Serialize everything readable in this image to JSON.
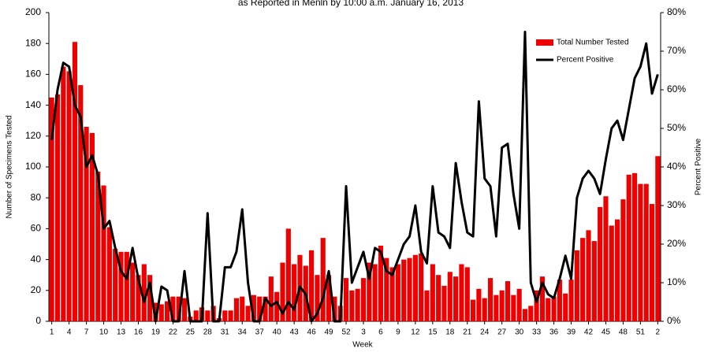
{
  "chart_data": {
    "type": "bar-line",
    "title": "as Reported in Menln by 10:00 a.m. January 16, 2013",
    "x_label": "Week",
    "y_label": "Number of Specimens Tested",
    "y2_label": "Percent Positive",
    "categories": [
      "1",
      null,
      null,
      "4",
      null,
      null,
      "7",
      null,
      null,
      "10",
      null,
      null,
      "13",
      null,
      null,
      "16",
      null,
      null,
      "19",
      null,
      null,
      "22",
      null,
      null,
      "25",
      null,
      null,
      "28",
      null,
      null,
      "31",
      null,
      null,
      "34",
      null,
      null,
      "37",
      null,
      null,
      "40",
      null,
      null,
      "43",
      null,
      null,
      "46",
      null,
      null,
      "49",
      null,
      null,
      "52",
      null,
      null,
      "3",
      null,
      null,
      "6",
      null,
      null,
      "9",
      null,
      null,
      "12",
      null,
      null,
      "15",
      null,
      null,
      "18",
      null,
      null,
      "21",
      null,
      null,
      "24",
      null,
      null,
      "27",
      null,
      null,
      "30",
      null,
      null,
      "33",
      null,
      null,
      "36",
      null,
      null,
      "39",
      null,
      null,
      "42",
      null,
      null,
      "45",
      null,
      null,
      "48",
      null,
      null,
      "51",
      null,
      null,
      "2"
    ],
    "series": [
      {
        "name": "Total Number Tested",
        "kind": "bar",
        "color": "#ee0000",
        "values": [
          145,
          147,
          165,
          162,
          181,
          153,
          126,
          122,
          97,
          88,
          61,
          47,
          45,
          45,
          38,
          30,
          37,
          30,
          12,
          11,
          13,
          16,
          16,
          15,
          3,
          7,
          9,
          7,
          10,
          2,
          7,
          7,
          15,
          16,
          10,
          17,
          16,
          16,
          29,
          19,
          38,
          60,
          37,
          43,
          36,
          46,
          30,
          54,
          30,
          16,
          10,
          28,
          20,
          21,
          28,
          38,
          37,
          49,
          41,
          35,
          37,
          40,
          41,
          43,
          44,
          20,
          37,
          30,
          23,
          32,
          29,
          37,
          35,
          14,
          21,
          15,
          28,
          17,
          20,
          26,
          17,
          21,
          8,
          10,
          20,
          29,
          15,
          16,
          27,
          18,
          27,
          46,
          54,
          59,
          52,
          74,
          81,
          62,
          66,
          79,
          95,
          96,
          89,
          89,
          76,
          107
        ]
      },
      {
        "name": "Percent Positive",
        "kind": "line",
        "axis": "y2",
        "color": "#000000",
        "values": [
          47,
          60,
          67,
          66,
          56,
          53,
          40,
          43,
          38,
          24,
          26,
          19,
          13,
          11,
          19,
          11,
          5,
          10,
          0,
          9,
          8,
          0,
          0,
          13,
          0,
          0,
          0,
          28,
          0,
          0,
          14,
          14,
          18,
          29,
          10,
          0,
          0,
          6,
          4,
          5,
          2,
          5,
          3,
          9,
          7,
          0,
          2,
          6,
          13,
          0,
          0,
          35,
          10,
          14,
          18,
          11,
          19,
          18,
          13,
          12,
          16,
          20,
          22,
          30,
          18,
          15,
          35,
          23,
          22,
          19,
          41,
          31,
          23,
          22,
          57,
          37,
          35,
          22,
          45,
          46,
          33,
          24,
          75,
          10,
          5,
          10,
          7,
          6,
          11,
          17,
          11,
          32,
          37,
          39,
          37,
          33,
          42,
          50,
          52,
          47,
          55,
          63,
          66,
          72,
          59,
          64
        ]
      }
    ],
    "ylim": [
      0,
      200
    ],
    "yticks": [
      0,
      20,
      40,
      60,
      80,
      100,
      120,
      140,
      160,
      180,
      200
    ],
    "y2lim": [
      0,
      80
    ],
    "y2ticks": [
      {
        "value": 0,
        "label": "0%"
      },
      {
        "value": 10,
        "label": "10%"
      },
      {
        "value": 20,
        "label": "20%"
      },
      {
        "value": 30,
        "label": "30%"
      },
      {
        "value": 40,
        "label": "40%"
      },
      {
        "value": 50,
        "label": "50%"
      },
      {
        "value": 60,
        "label": "60%"
      },
      {
        "value": 70,
        "label": "70%"
      },
      {
        "value": 80,
        "label": "80%"
      }
    ],
    "legend": "top-right"
  }
}
